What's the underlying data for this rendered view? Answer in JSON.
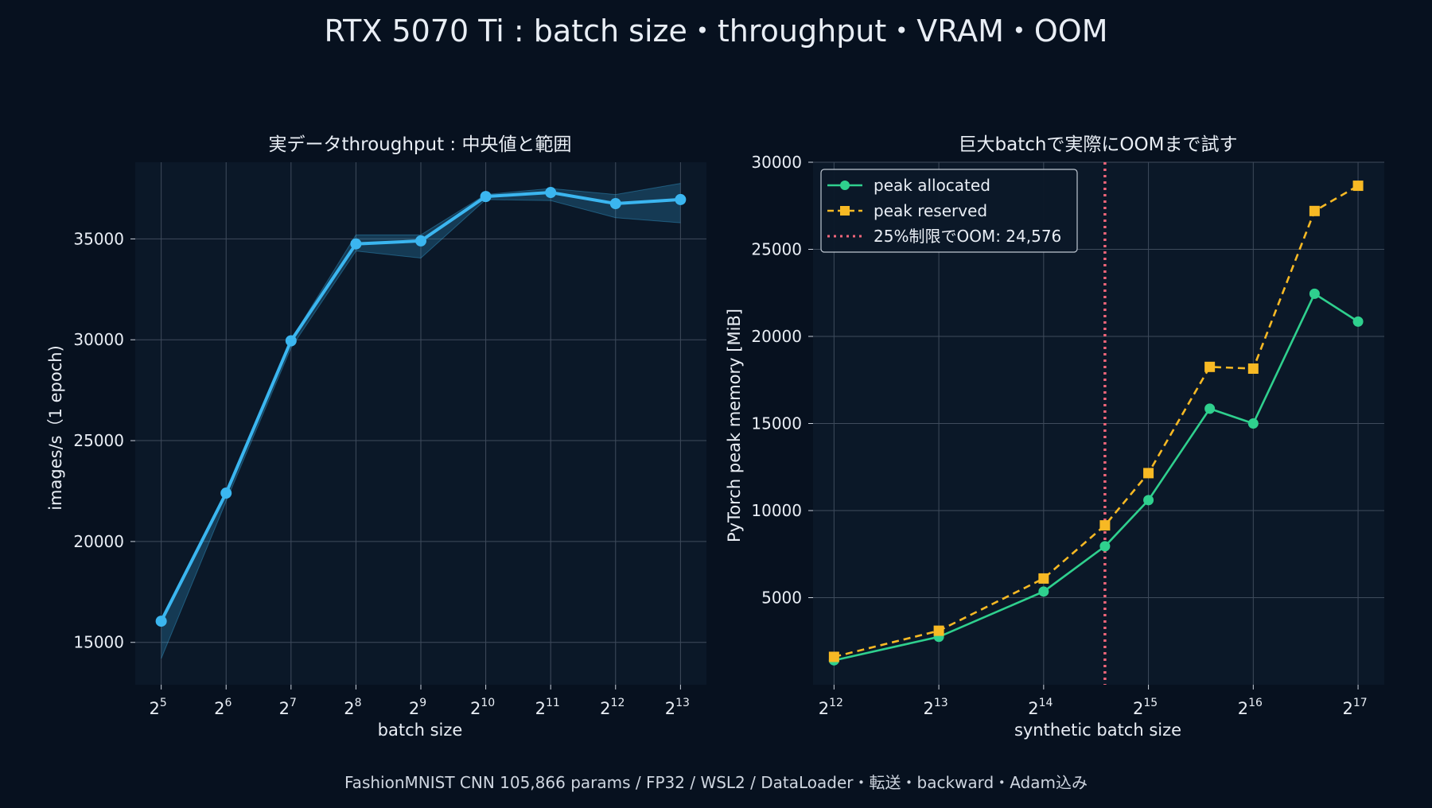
{
  "figure": {
    "title": "RTX 5070 Ti : batch size・throughput・VRAM・OOM",
    "footer": "FashionMNIST CNN 105,866 params / FP32 / WSL2 / DataLoader・転送・backward・Adam込み"
  },
  "colors": {
    "background": "#07111f",
    "plot_background": "#0b1828",
    "grid": "#3f4b5c",
    "text": "#e9eef5",
    "throughput": "#3bb6f0",
    "allocated": "#2fd08e",
    "reserved": "#f7b924",
    "oom_line": "#f2667a"
  },
  "chart_data": [
    {
      "type": "line",
      "title": "実データthroughput : 中央値と範囲",
      "xlabel": "batch size",
      "ylabel": "images/s（1 epoch)",
      "xscale": "log2",
      "xlim": [
        4.6,
        13.4
      ],
      "ylim": [
        12900,
        38800
      ],
      "grid": true,
      "x": [
        32,
        64,
        128,
        256,
        512,
        1024,
        2048,
        4096,
        8192
      ],
      "x_exponents": [
        "5",
        "6",
        "7",
        "8",
        "9",
        "10",
        "11",
        "12",
        "13"
      ],
      "yticks": [
        15000,
        20000,
        25000,
        30000,
        35000
      ],
      "series": [
        {
          "values": [
            16050,
            22400,
            29950,
            34750,
            34900,
            37100,
            37300,
            36750,
            36950
          ],
          "range_low": [
            14200,
            22000,
            29600,
            34400,
            34050,
            36950,
            36900,
            36050,
            35800
          ],
          "range_high": [
            16200,
            22500,
            30000,
            35200,
            35200,
            37200,
            37500,
            37200,
            37750
          ]
        }
      ]
    },
    {
      "type": "line",
      "title": "巨大batchで実際にOOMまで試す",
      "xlabel": "synthetic batch size",
      "ylabel": "PyTorch peak memory [MiB]",
      "xscale": "log2",
      "xlim": [
        11.8,
        17.25
      ],
      "ylim": [
        0,
        30000
      ],
      "grid": true,
      "legend_position": "top-left",
      "x": [
        4096,
        8192,
        16384,
        32768,
        49152,
        65536,
        98304,
        131072
      ],
      "xticks": [
        4096,
        8192,
        16384,
        32768,
        65536,
        131072
      ],
      "xtick_exponents": [
        "12",
        "13",
        "14",
        "15",
        "16",
        "17"
      ],
      "yticks": [
        5000,
        10000,
        15000,
        20000,
        25000,
        30000
      ],
      "series": [
        {
          "name": "peak allocated",
          "values": [
            1400,
            2750,
            5350,
            10600,
            15850,
            15000,
            22450,
            20850
          ]
        },
        {
          "name": "peak reserved",
          "values": [
            1600,
            3100,
            6100,
            12150,
            18250,
            18150,
            27200,
            28650
          ]
        }
      ],
      "extra_x": [
        24576
      ],
      "extra_values": {
        "peak allocated": 7950,
        "peak reserved": 9150
      },
      "vline": {
        "x": 24576,
        "label": "25%制限でOOM: 24,576"
      }
    }
  ]
}
